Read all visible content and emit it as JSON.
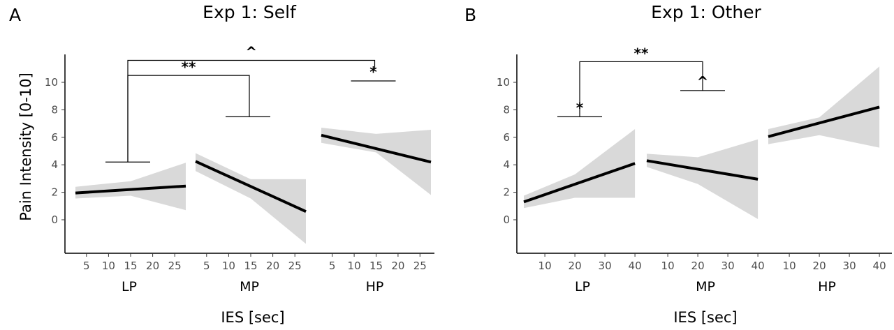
{
  "chart_data": [
    {
      "type": "line",
      "panel_letter": "A",
      "title": "Exp 1: Self",
      "ylabel": "Pain Intensity [0-10]",
      "xlabel": "IES  [sec]",
      "ylim": [
        -2.5,
        12
      ],
      "yticks": [
        0,
        2,
        4,
        6,
        8,
        10
      ],
      "grid": false,
      "legend": "none",
      "groups": [
        {
          "name": "LP",
          "xlim": [
            2.5,
            27.5
          ],
          "xticks": [
            5,
            10,
            15,
            20,
            25
          ],
          "line": {
            "x": [
              2.5,
              27.5
            ],
            "y": [
              1.95,
              2.45
            ]
          },
          "band": {
            "x": [
              2.5,
              15,
              27.5
            ],
            "upper": [
              2.4,
              2.8,
              4.15
            ],
            "lower": [
              1.55,
              1.75,
              0.7
            ]
          }
        },
        {
          "name": "MP",
          "xlim": [
            2.5,
            27.5
          ],
          "xticks": [
            5,
            10,
            15,
            20,
            25
          ],
          "line": {
            "x": [
              2.5,
              27.5
            ],
            "y": [
              4.25,
              0.6
            ]
          },
          "band": {
            "x": [
              2.5,
              15,
              27.5
            ],
            "upper": [
              4.85,
              2.95,
              2.95
            ],
            "lower": [
              3.55,
              1.55,
              -1.75
            ]
          }
        },
        {
          "name": "HP",
          "xlim": [
            2.5,
            27.5
          ],
          "xticks": [
            5,
            10,
            15,
            20,
            25
          ],
          "line": {
            "x": [
              2.5,
              27.5
            ],
            "y": [
              6.15,
              4.2
            ]
          },
          "band": {
            "x": [
              2.5,
              15,
              27.5
            ],
            "upper": [
              6.7,
              6.25,
              6.55
            ],
            "lower": [
              5.6,
              4.9,
              1.8
            ]
          }
        }
      ],
      "annotations": [
        {
          "label": "**",
          "from_group": "LP",
          "to_group": "MP",
          "y": 10.5,
          "from_y": 4.2,
          "to_y": 7.5
        },
        {
          "label": "^",
          "from_group": "LP",
          "to_group": "HP",
          "y": 11.6,
          "from_y": 4.2,
          "to_y": 11.0
        },
        {
          "label": "*",
          "group": "HP",
          "y": 10.1
        },
        {
          "label": "",
          "group": "LP",
          "y": 4.2
        },
        {
          "label": "",
          "group": "MP",
          "y": 7.5
        }
      ]
    },
    {
      "type": "line",
      "panel_letter": "B",
      "title": "Exp 1: Other",
      "ylabel": "",
      "xlabel": "IES [sec]",
      "ylim": [
        -2.5,
        12
      ],
      "yticks": [
        0,
        2,
        4,
        6,
        8,
        10
      ],
      "grid": false,
      "legend": "none",
      "groups": [
        {
          "name": "LP",
          "xlim": [
            3,
            43
          ],
          "xticks": [
            10,
            20,
            30,
            40
          ],
          "line": {
            "x": [
              3,
              40
            ],
            "y": [
              1.3,
              4.1
            ]
          },
          "band": {
            "x": [
              3,
              20,
              40
            ],
            "upper": [
              1.75,
              3.3,
              6.6
            ],
            "lower": [
              0.85,
              1.6,
              1.6
            ]
          }
        },
        {
          "name": "MP",
          "xlim": [
            3,
            43
          ],
          "xticks": [
            10,
            20,
            30,
            40
          ],
          "line": {
            "x": [
              3,
              40
            ],
            "y": [
              4.3,
              2.95
            ]
          },
          "band": {
            "x": [
              3,
              20,
              40
            ],
            "upper": [
              4.8,
              4.55,
              5.85
            ],
            "lower": [
              3.85,
              2.6,
              0.05
            ]
          }
        },
        {
          "name": "HP",
          "xlim": [
            3,
            43
          ],
          "xticks": [
            10,
            20,
            30,
            40
          ],
          "line": {
            "x": [
              3,
              40
            ],
            "y": [
              6.05,
              8.2
            ]
          },
          "band": {
            "x": [
              3,
              20,
              40
            ],
            "upper": [
              6.6,
              7.45,
              11.15
            ],
            "lower": [
              5.5,
              6.15,
              5.25
            ]
          }
        }
      ],
      "annotations": [
        {
          "label": "**",
          "from_group": "LP",
          "to_group": "MP",
          "y": 11.5,
          "from_y": 7.5,
          "to_y": 9.4
        },
        {
          "label": "*",
          "group": "LP",
          "y": 7.5
        },
        {
          "label": "^",
          "group": "MP",
          "y": 9.4
        }
      ]
    }
  ]
}
